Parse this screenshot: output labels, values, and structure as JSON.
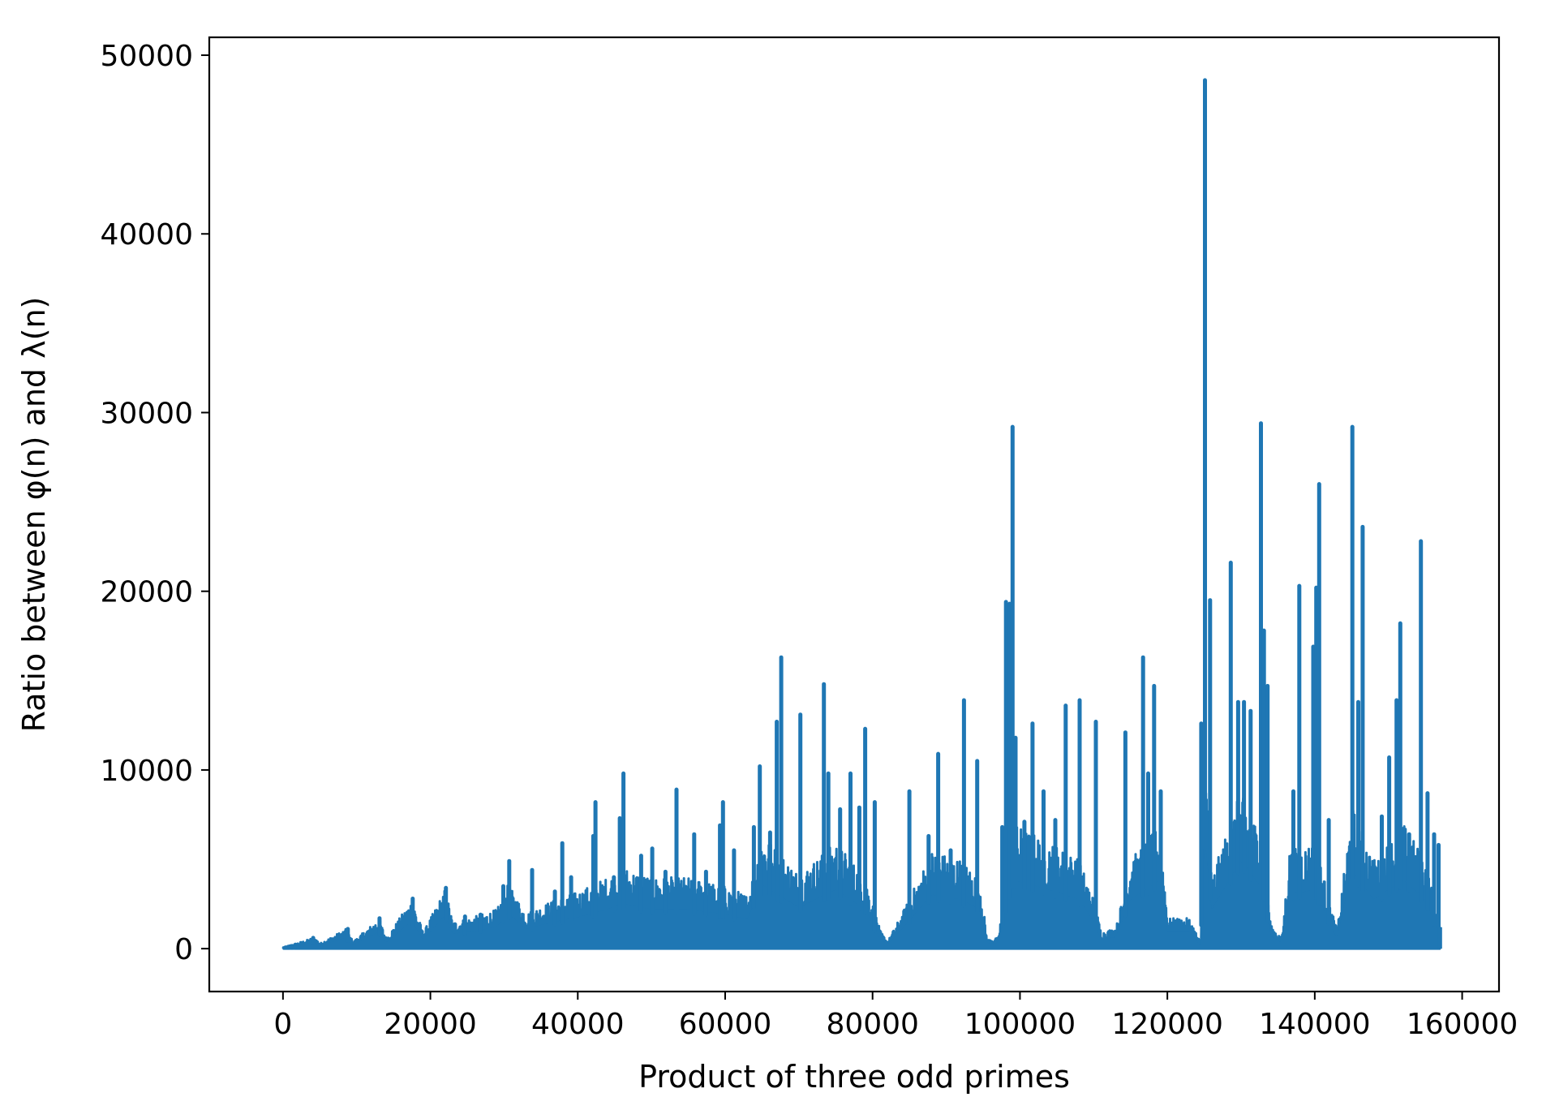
{
  "chart_data": {
    "type": "line",
    "title": "",
    "xlabel": "Product of three odd primes",
    "ylabel": "Ratio between φ(n) and λ(n)",
    "xlim": [
      -10000,
      165000
    ],
    "ylim": [
      -2400,
      51000
    ],
    "grid": false,
    "legend": "none",
    "x_ticks": [
      0,
      20000,
      40000,
      60000,
      80000,
      100000,
      120000,
      140000,
      160000
    ],
    "x_tick_labels": [
      "0",
      "20000",
      "40000",
      "60000",
      "80000",
      "100000",
      "120000",
      "140000",
      "160000"
    ],
    "y_ticks": [
      0,
      10000,
      20000,
      30000,
      40000,
      50000
    ],
    "y_tick_labels": [
      "0",
      "10000",
      "20000",
      "30000",
      "40000",
      "50000"
    ],
    "colors": {
      "line": "#1f77b4",
      "axes": "#000000",
      "background": "#ffffff"
    },
    "series": [
      {
        "x_max": 157000,
        "base_envelope": [
          [
            0,
            80
          ],
          [
            3000,
            450
          ],
          [
            4200,
            650
          ],
          [
            5000,
            300
          ],
          [
            8500,
            1100
          ],
          [
            9500,
            400
          ],
          [
            13000,
            1700
          ],
          [
            14000,
            600
          ],
          [
            17500,
            2800
          ],
          [
            19000,
            900
          ],
          [
            22000,
            3400
          ],
          [
            23000,
            1500
          ],
          [
            26000,
            1800
          ],
          [
            29000,
            2200
          ],
          [
            30500,
            3600
          ],
          [
            33000,
            2000
          ],
          [
            36000,
            2600
          ],
          [
            40000,
            3200
          ],
          [
            44000,
            4000
          ],
          [
            46000,
            4600
          ],
          [
            50000,
            4000
          ],
          [
            55000,
            4000
          ],
          [
            60000,
            3500
          ],
          [
            63000,
            3000
          ],
          [
            65000,
            6500
          ],
          [
            70000,
            4200
          ],
          [
            75000,
            6000
          ],
          [
            79000,
            4000
          ],
          [
            81000,
            1000
          ],
          [
            82000,
            400
          ],
          [
            84000,
            2000
          ],
          [
            88000,
            5500
          ],
          [
            92000,
            5000
          ],
          [
            94500,
            4000
          ],
          [
            95500,
            500
          ],
          [
            97000,
            600
          ],
          [
            99000,
            7000
          ],
          [
            104000,
            6000
          ],
          [
            108000,
            5000
          ],
          [
            110000,
            2800
          ],
          [
            111000,
            900
          ],
          [
            113000,
            1200
          ],
          [
            115000,
            5000
          ],
          [
            119000,
            7000
          ],
          [
            120000,
            1700
          ],
          [
            123000,
            1700
          ],
          [
            124500,
            300
          ],
          [
            125000,
            12000
          ],
          [
            126000,
            4000
          ],
          [
            130000,
            9000
          ],
          [
            133000,
            6000
          ],
          [
            134000,
            1300
          ],
          [
            135500,
            600
          ],
          [
            136500,
            5500
          ],
          [
            140000,
            6000
          ],
          [
            143000,
            1000
          ],
          [
            145000,
            8000
          ],
          [
            148000,
            5000
          ],
          [
            152000,
            7000
          ],
          [
            155000,
            5000
          ],
          [
            157000,
            1200
          ]
        ],
        "spikes": [
          [
            4100,
            600
          ],
          [
            8800,
            1100
          ],
          [
            13100,
            1700
          ],
          [
            17600,
            2800
          ],
          [
            22100,
            3400
          ],
          [
            24700,
            1800
          ],
          [
            26800,
            1900
          ],
          [
            29900,
            3500
          ],
          [
            30700,
            4900
          ],
          [
            33800,
            4400
          ],
          [
            36900,
            3200
          ],
          [
            37900,
            5900
          ],
          [
            39100,
            4000
          ],
          [
            42100,
            6300
          ],
          [
            42400,
            8200
          ],
          [
            44900,
            4000
          ],
          [
            45700,
            7300
          ],
          [
            46200,
            9800
          ],
          [
            48600,
            5200
          ],
          [
            50100,
            5600
          ],
          [
            51900,
            4300
          ],
          [
            53400,
            8900
          ],
          [
            55800,
            6400
          ],
          [
            57400,
            4300
          ],
          [
            59300,
            6900
          ],
          [
            59700,
            8200
          ],
          [
            61200,
            5500
          ],
          [
            63900,
            6800
          ],
          [
            64700,
            10200
          ],
          [
            66100,
            6500
          ],
          [
            67000,
            12700
          ],
          [
            67600,
            16300
          ],
          [
            70200,
            13100
          ],
          [
            73400,
            14800
          ],
          [
            74000,
            9800
          ],
          [
            75600,
            7800
          ],
          [
            77000,
            9800
          ],
          [
            78200,
            7900
          ],
          [
            79000,
            12300
          ],
          [
            80300,
            8200
          ],
          [
            85000,
            8800
          ],
          [
            87600,
            6300
          ],
          [
            88900,
            10900
          ],
          [
            90600,
            5500
          ],
          [
            92400,
            13900
          ],
          [
            94200,
            10500
          ],
          [
            97600,
            6800
          ],
          [
            98100,
            19400
          ],
          [
            98600,
            19300
          ],
          [
            99000,
            29200
          ],
          [
            99400,
            11800
          ],
          [
            100600,
            7100
          ],
          [
            101700,
            12600
          ],
          [
            103200,
            8800
          ],
          [
            104800,
            7200
          ],
          [
            106200,
            13600
          ],
          [
            108100,
            13900
          ],
          [
            110300,
            12700
          ],
          [
            114300,
            12100
          ],
          [
            116700,
            16300
          ],
          [
            117400,
            9800
          ],
          [
            118200,
            14700
          ],
          [
            119100,
            8800
          ],
          [
            124600,
            12600
          ],
          [
            125100,
            48600
          ],
          [
            125800,
            19500
          ],
          [
            128600,
            21600
          ],
          [
            129600,
            13800
          ],
          [
            130400,
            13800
          ],
          [
            131300,
            13300
          ],
          [
            132700,
            29400
          ],
          [
            133100,
            17800
          ],
          [
            133600,
            14700
          ],
          [
            137100,
            8800
          ],
          [
            137900,
            20300
          ],
          [
            139800,
            16900
          ],
          [
            140200,
            20200
          ],
          [
            140600,
            26000
          ],
          [
            141900,
            7200
          ],
          [
            145100,
            29200
          ],
          [
            145900,
            13800
          ],
          [
            146500,
            23600
          ],
          [
            149100,
            7400
          ],
          [
            150100,
            10700
          ],
          [
            151100,
            13900
          ],
          [
            151600,
            18200
          ],
          [
            152800,
            6400
          ],
          [
            154400,
            22800
          ],
          [
            155300,
            8700
          ],
          [
            156200,
            6400
          ],
          [
            156800,
            5800
          ]
        ]
      }
    ]
  }
}
